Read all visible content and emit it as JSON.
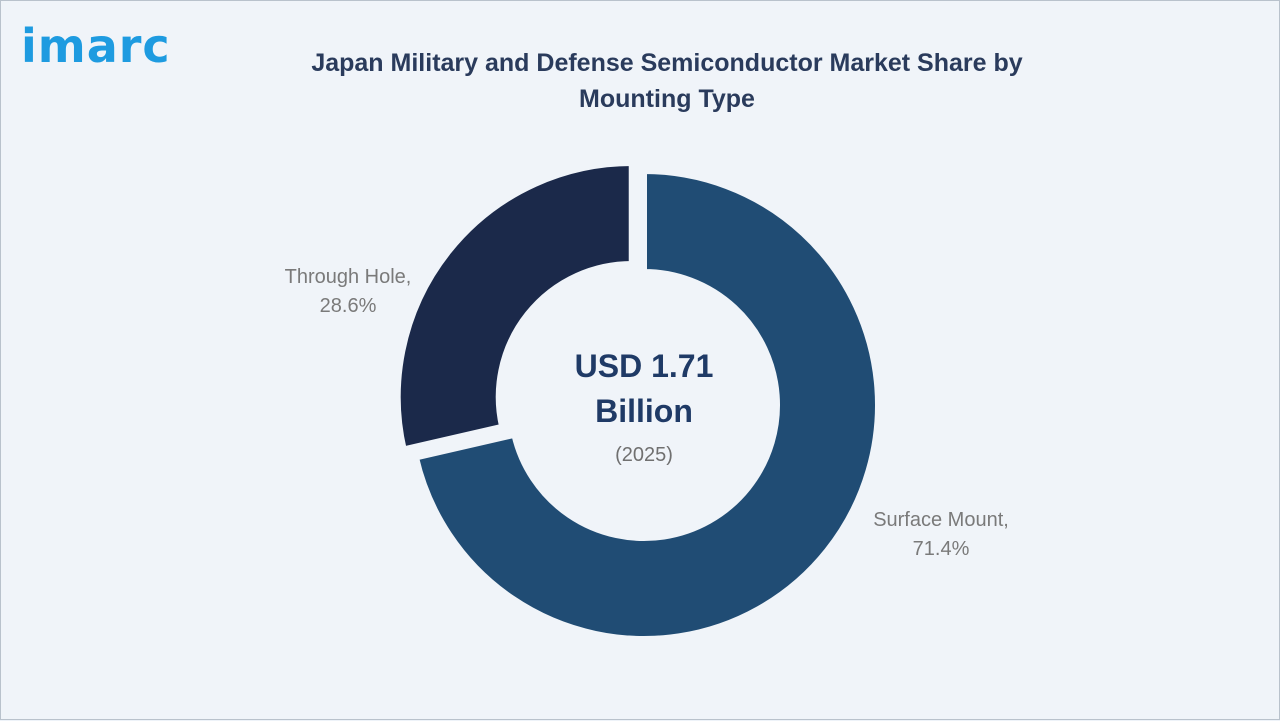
{
  "logo": {
    "text": "imarc"
  },
  "chart_data": {
    "type": "pie",
    "style": "donut",
    "title": "Japan Military and Defense Semiconductor Market Share by Mounting Type",
    "center_text": {
      "line1": "USD 1.71",
      "line2": "Billion",
      "line3": "(2025)"
    },
    "slices": [
      {
        "label": "Surface Mount,",
        "value_label": "71.4%",
        "value": 71.4,
        "color": "#204c74"
      },
      {
        "label": "Through Hole,",
        "value_label": "28.6%",
        "value": 28.6,
        "color": "#1b294a"
      }
    ]
  }
}
